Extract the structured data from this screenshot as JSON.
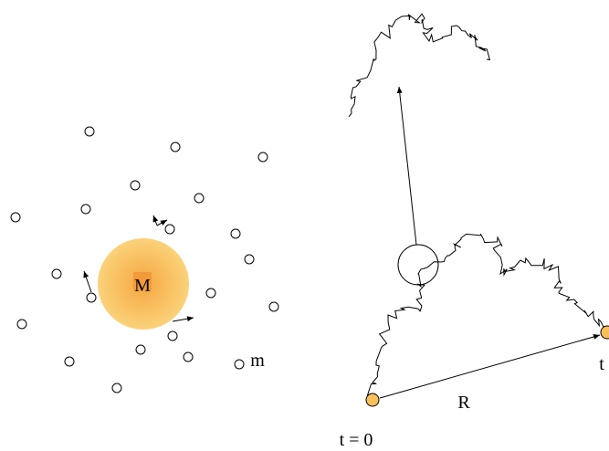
{
  "labels": {
    "big_mass": "M",
    "small_mass": "m",
    "distance": "R",
    "start_time": "t = 0",
    "end_time": "t"
  }
}
